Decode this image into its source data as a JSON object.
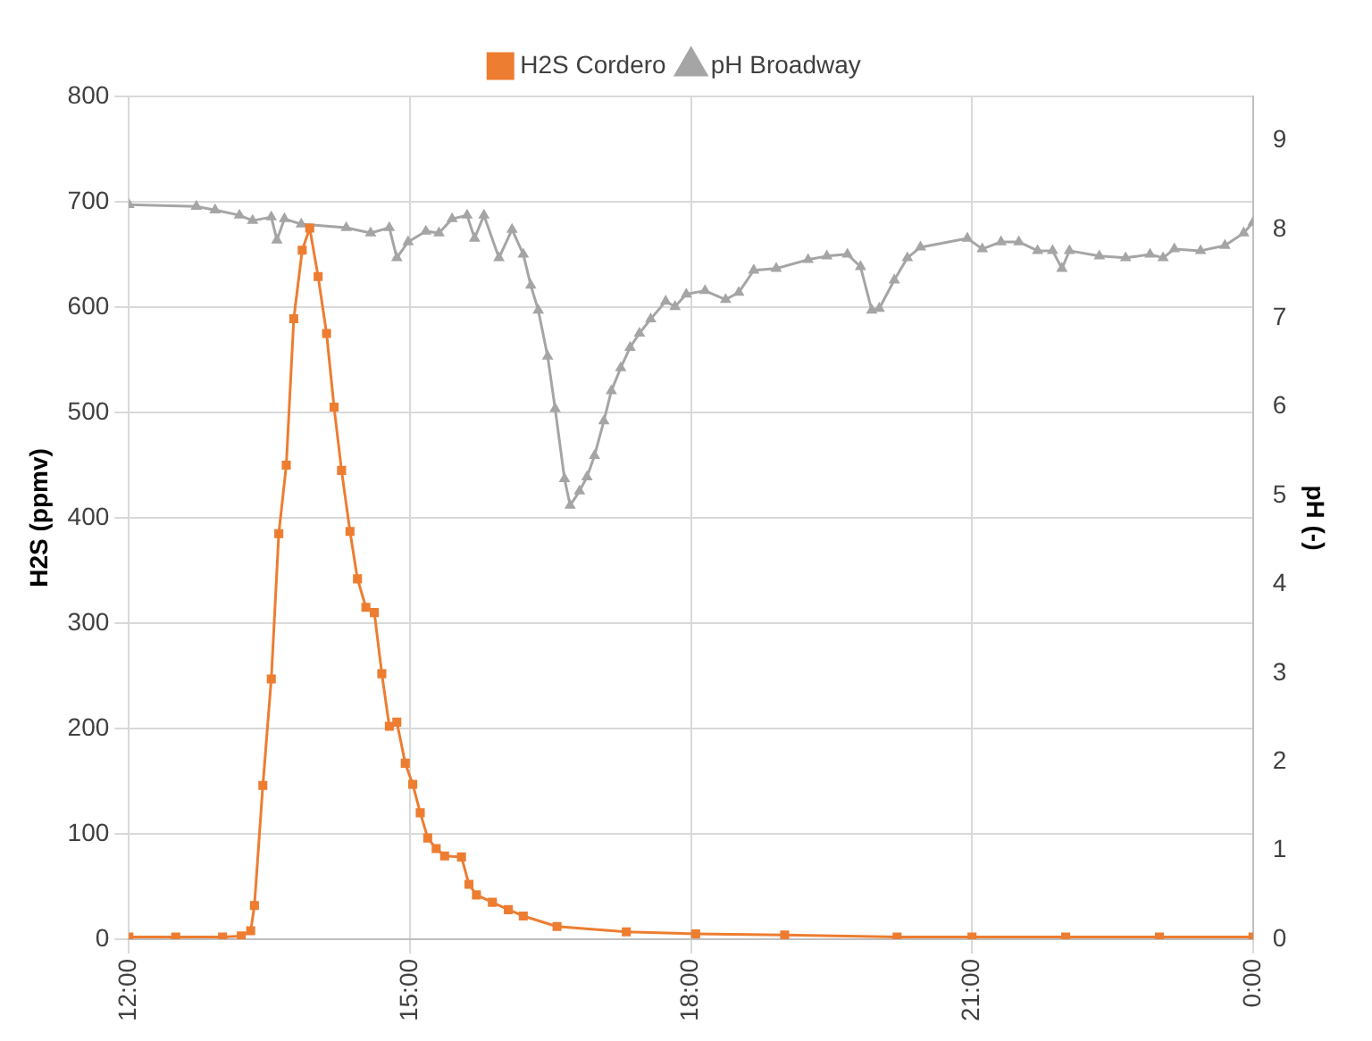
{
  "chart_data": {
    "type": "line",
    "ylabel": "H2S (ppmv)",
    "y2label": "pH (-)",
    "xlim": [
      12,
      24
    ],
    "xticks": [
      {
        "value": 12,
        "label": "12:00"
      },
      {
        "value": 15,
        "label": "15:00"
      },
      {
        "value": 18,
        "label": "18:00"
      },
      {
        "value": 21,
        "label": "21:00"
      },
      {
        "value": 24,
        "label": "0:00"
      }
    ],
    "ylim": [
      0,
      800
    ],
    "yticks": [
      0,
      100,
      200,
      300,
      400,
      500,
      600,
      700,
      800
    ],
    "y2lim": [
      0,
      9.5
    ],
    "y2ticks": [
      0,
      1,
      2,
      3,
      4,
      5,
      6,
      7,
      8,
      9
    ],
    "grid": true,
    "legend": "top",
    "line_style": "solid",
    "series": [
      {
        "name": "H2S Cordero",
        "color": "#ed7d31",
        "marker": "square",
        "x": [
          12.0,
          12.5,
          13.0,
          13.2,
          13.3,
          13.34,
          13.43,
          13.52,
          13.6,
          13.68,
          13.76,
          13.85,
          13.93,
          14.02,
          14.11,
          14.19,
          14.27,
          14.36,
          14.44,
          14.53,
          14.62,
          14.7,
          14.78,
          14.86,
          14.95,
          15.03,
          15.11,
          15.19,
          15.28,
          15.37,
          15.55,
          15.63,
          15.71,
          15.88,
          16.05,
          16.21,
          16.57,
          17.31,
          18.05,
          19.0,
          20.2,
          21.0,
          22.0,
          23.0,
          24.0
        ],
        "values": [
          2,
          2,
          2,
          3,
          8,
          32,
          146,
          247,
          385,
          450,
          589,
          654,
          675,
          629,
          575,
          505,
          445,
          387,
          342,
          315,
          310,
          252,
          202,
          206,
          167,
          147,
          120,
          96,
          86,
          79,
          78,
          52,
          42,
          35,
          28,
          22,
          12,
          7,
          5,
          4,
          2,
          2,
          2,
          2,
          2
        ]
      },
      {
        "name": "pH Broadway",
        "color": "#a5a5a5",
        "marker": "triangle",
        "axis": "y2",
        "x": [
          12.0,
          12.72,
          12.92,
          13.18,
          13.32,
          13.52,
          13.58,
          13.66,
          13.84,
          14.32,
          14.58,
          14.78,
          14.86,
          14.98,
          15.17,
          15.31,
          15.45,
          15.61,
          15.69,
          15.79,
          15.95,
          16.09,
          16.21,
          16.29,
          16.37,
          16.47,
          16.55,
          16.65,
          16.71,
          16.81,
          16.89,
          16.97,
          17.07,
          17.15,
          17.25,
          17.35,
          17.45,
          17.57,
          17.73,
          17.83,
          17.95,
          18.15,
          18.37,
          18.51,
          18.67,
          18.91,
          19.25,
          19.45,
          19.67,
          19.81,
          19.93,
          20.01,
          20.17,
          20.31,
          20.45,
          20.95,
          21.11,
          21.31,
          21.5,
          21.7,
          21.86,
          21.96,
          22.04,
          22.36,
          22.64,
          22.9,
          23.04,
          23.16,
          23.44,
          23.7,
          23.9,
          24.0
        ],
        "values": [
          8.28,
          8.26,
          8.22,
          8.16,
          8.1,
          8.14,
          7.88,
          8.12,
          8.06,
          8.02,
          7.96,
          8.02,
          7.68,
          7.86,
          7.98,
          7.96,
          8.12,
          8.16,
          7.9,
          8.16,
          7.68,
          8.0,
          7.72,
          7.37,
          7.09,
          6.57,
          5.98,
          5.19,
          4.89,
          5.05,
          5.21,
          5.45,
          5.84,
          6.18,
          6.44,
          6.67,
          6.83,
          6.99,
          7.19,
          7.13,
          7.27,
          7.31,
          7.21,
          7.29,
          7.54,
          7.56,
          7.66,
          7.7,
          7.72,
          7.58,
          7.09,
          7.11,
          7.43,
          7.68,
          7.8,
          7.9,
          7.78,
          7.86,
          7.86,
          7.76,
          7.76,
          7.56,
          7.76,
          7.7,
          7.68,
          7.72,
          7.68,
          7.78,
          7.76,
          7.82,
          7.96,
          8.08
        ]
      }
    ]
  }
}
